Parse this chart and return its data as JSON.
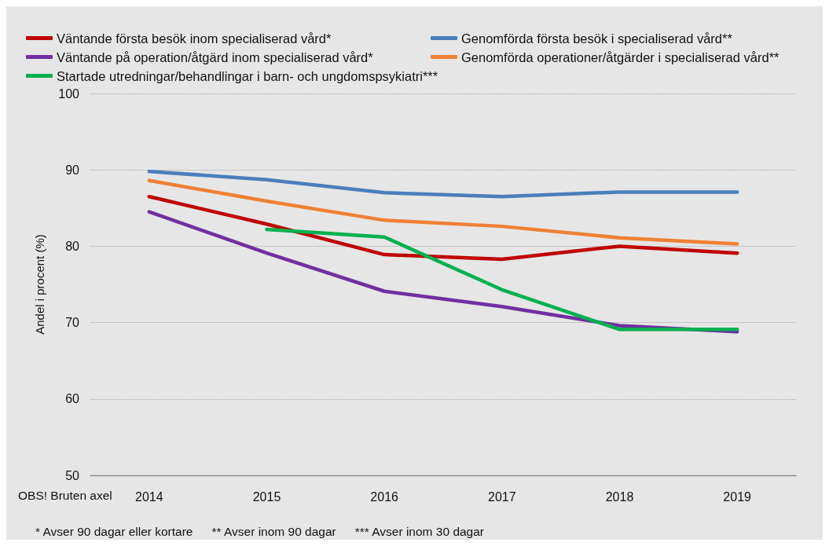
{
  "chart_data": {
    "type": "line",
    "ylabel": "Andel i procent (%)",
    "categories": [
      "2014",
      "2015",
      "2016",
      "2017",
      "2018",
      "2019"
    ],
    "series": [
      {
        "name": "Väntande första besök inom specialiserad vård*",
        "color": "#c00000",
        "values": [
          86.5,
          82.9,
          78.9,
          78.3,
          80.0,
          79.1
        ]
      },
      {
        "name": "Genomförda första besök i specialiserad vård**",
        "color": "#4a7ebb",
        "values": [
          89.8,
          88.7,
          87.0,
          86.5,
          87.1,
          87.1
        ]
      },
      {
        "name": "Väntande på operation/åtgärd inom specialiserad vård*",
        "color": "#7030a0",
        "values": [
          84.5,
          79.1,
          74.1,
          72.1,
          69.6,
          68.8
        ]
      },
      {
        "name": "Genomförda operationer/åtgärder i specialiserad vård**",
        "color": "#f08034",
        "values": [
          88.6,
          85.9,
          83.4,
          82.6,
          81.1,
          80.3
        ]
      },
      {
        "name": "Startade utredningar/behandlingar i barn- och ungdomspsykiatri***",
        "color": "#00b050",
        "values": [
          null,
          82.2,
          81.2,
          74.3,
          69.1,
          69.1
        ]
      }
    ],
    "ylim": [
      50,
      100
    ],
    "yticks": [
      50,
      60,
      70,
      80,
      90,
      100
    ],
    "grid": "y",
    "legend": "top",
    "marker": "none",
    "line_style": "solid",
    "annotations": [
      "OBS! Bruten axel",
      "* Avser 90 dagar eller kortare",
      "** Avser inom 90 dagar",
      "*** Avser inom 30 dagar"
    ]
  }
}
